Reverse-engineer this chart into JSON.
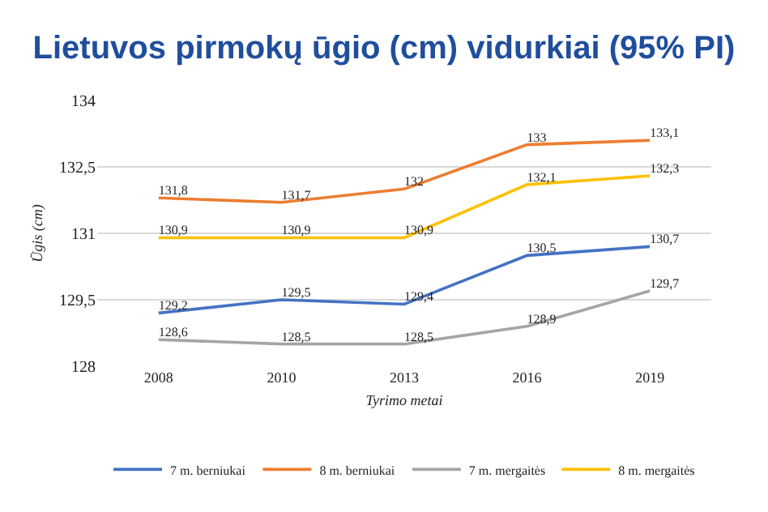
{
  "chart_data": {
    "type": "line",
    "title": "Lietuvos pirmokų ūgio (cm) vidurkiai (95% PI)",
    "xlabel": "Tyrimo metai",
    "ylabel": "Ūgis (cm)",
    "categories": [
      "2008",
      "2010",
      "2013",
      "2016",
      "2019"
    ],
    "series": [
      {
        "name": "7 m. berniukai",
        "color": "#4472c4",
        "values": [
          129.2,
          129.5,
          129.4,
          130.5,
          130.7
        ],
        "value_labels": [
          "129,2",
          "129,5",
          "129,4",
          "130,5",
          "130,7"
        ]
      },
      {
        "name": "8 m. berniukai",
        "color": "#ed7d31",
        "values": [
          131.8,
          131.7,
          132,
          133,
          133.1
        ],
        "value_labels": [
          "131,8",
          "131,7",
          "132",
          "133",
          "133,1"
        ]
      },
      {
        "name": "7 m. mergaitės",
        "color": "#a5a5a5",
        "values": [
          128.6,
          128.5,
          128.5,
          128.9,
          129.7
        ],
        "value_labels": [
          "128,6",
          "128,5",
          "128,5",
          "128,9",
          "129,7"
        ]
      },
      {
        "name": "8 m. mergaitės",
        "color": "#ffc000",
        "values": [
          130.9,
          130.9,
          130.9,
          132.1,
          132.3
        ],
        "value_labels": [
          "130,9",
          "130,9",
          "130,9",
          "132,1",
          "132,3"
        ]
      }
    ],
    "ylim": [
      128,
      134
    ],
    "yticks": [
      128,
      {
        "value": 129.5,
        "label": "129,5"
      },
      131,
      {
        "value": 132.5,
        "label": "132,5"
      },
      134
    ],
    "grid": "y",
    "legend": "bottom"
  }
}
